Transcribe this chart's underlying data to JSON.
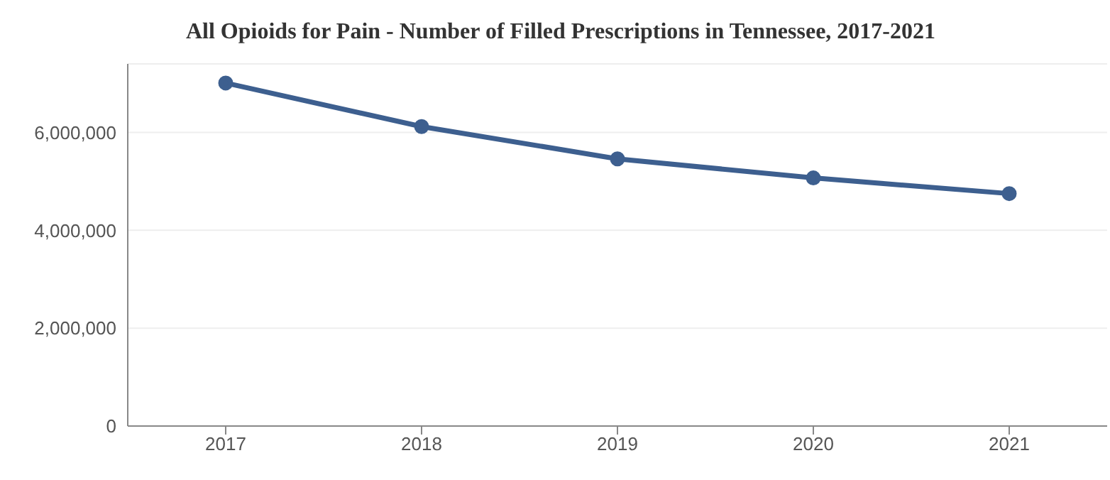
{
  "chart_data": {
    "type": "line",
    "title": "All Opioids for Pain - Number of Filled Prescriptions in Tennessee, 2017-2021",
    "categories": [
      "2017",
      "2018",
      "2019",
      "2020",
      "2021"
    ],
    "series": [
      {
        "color": "#3d5f8f",
        "values": [
          7010000,
          6120000,
          5460000,
          5070000,
          4750000
        ]
      }
    ],
    "ylim": [
      0,
      7400000
    ],
    "yticks": [
      0,
      {
        "value": 2000000,
        "label": "2,000,000"
      },
      {
        "value": 4000000,
        "label": "4,000,000"
      },
      {
        "value": 6000000,
        "label": "6,000,000"
      }
    ],
    "grid": "y",
    "marker": "circle",
    "legend": false
  }
}
